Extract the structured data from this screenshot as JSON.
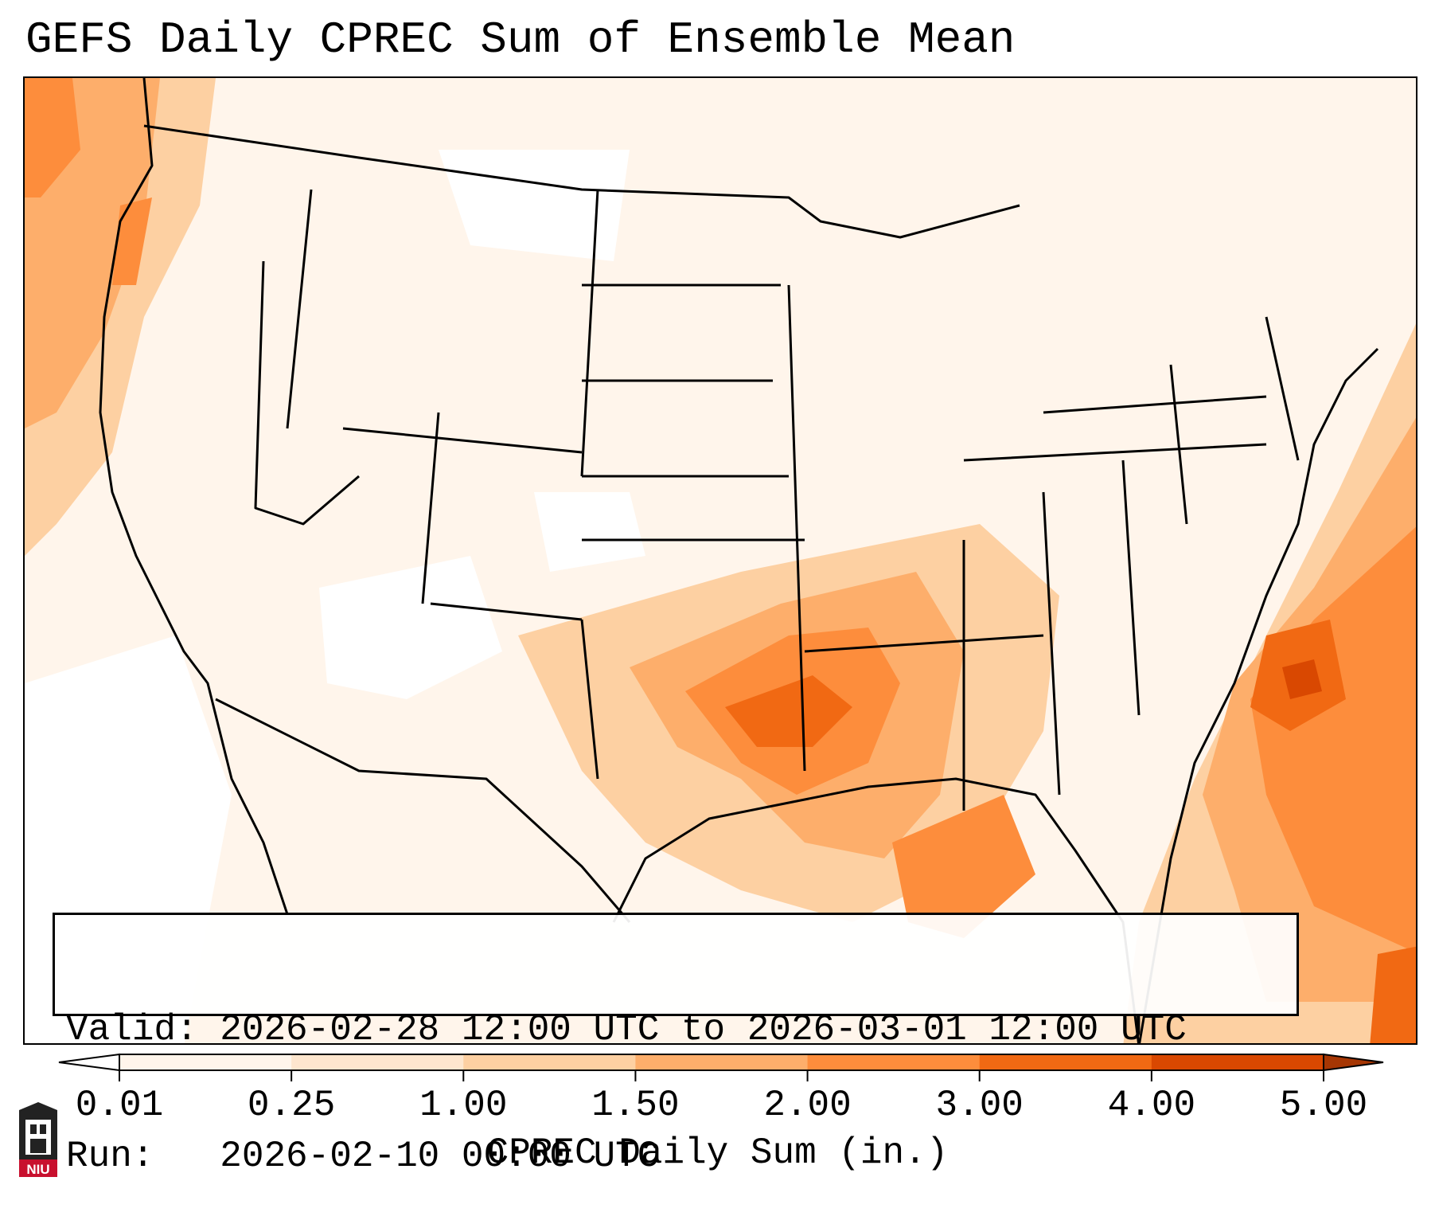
{
  "title": "GEFS Daily CPREC Sum of Ensemble Mean",
  "info": {
    "valid_line": "Valid: 2026-02-28 12:00 UTC to 2026-03-01 12:00 UTC",
    "run_line": "Run:   2026-02-10 00:00 UTC"
  },
  "colorbar": {
    "label": "CPREC Daily Sum (in.)",
    "ticks": [
      "0.01",
      "0.25",
      "1.00",
      "1.50",
      "2.00",
      "3.00",
      "4.00",
      "5.00"
    ],
    "colors": [
      "#fff5eb",
      "#fee6ce",
      "#fdd0a2",
      "#fdae6b",
      "#fd8d3c",
      "#f16913",
      "#d94801"
    ],
    "under_color": "#ffffff",
    "over_color": "#a63603"
  },
  "logo": {
    "text": "NIU"
  }
}
